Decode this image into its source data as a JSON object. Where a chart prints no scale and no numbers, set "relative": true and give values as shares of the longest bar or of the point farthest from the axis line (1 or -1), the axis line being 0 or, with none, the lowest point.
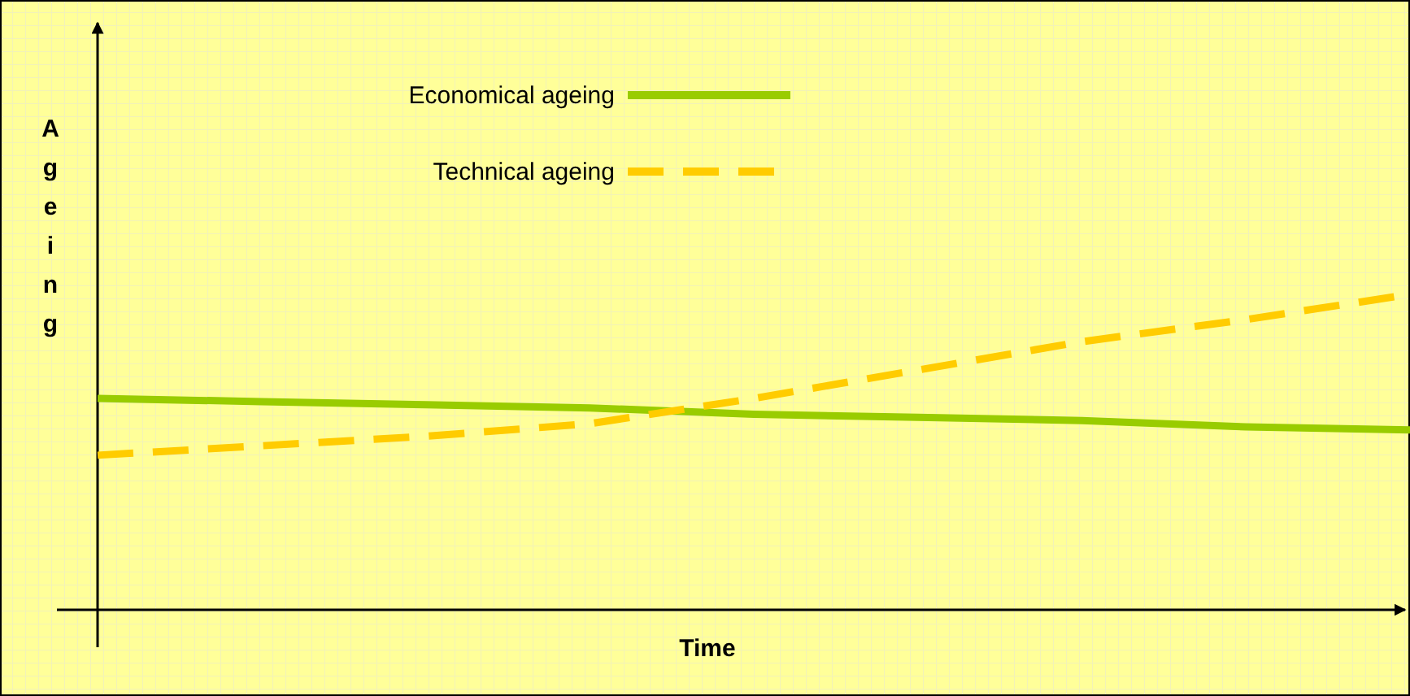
{
  "chart_data": {
    "type": "line",
    "relative": true,
    "xlabel": "Time",
    "ylabel": "Ageing",
    "categories": [
      null,
      null,
      null,
      null,
      null,
      null,
      null,
      null,
      null
    ],
    "series": [
      {
        "name": "Economical ageing",
        "color": "#99cc00",
        "line_style": "solid",
        "values": [
          0.67,
          0.66,
          0.65,
          0.64,
          0.62,
          0.61,
          0.6,
          0.58,
          0.57
        ]
      },
      {
        "name": "Technical ageing",
        "color": "#ffcc00",
        "line_style": "dashed",
        "values": [
          0.49,
          0.52,
          0.55,
          0.59,
          0.67,
          0.76,
          0.85,
          0.92,
          1
        ]
      }
    ],
    "legend": "top left",
    "marker": "none"
  }
}
